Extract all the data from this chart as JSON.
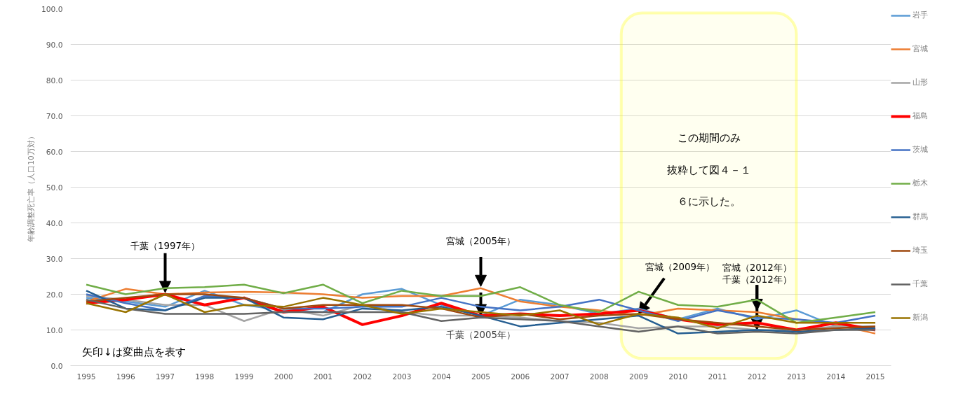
{
  "chart_data": {
    "type": "line",
    "ylabel": "年齢調整死亡率（人口10万対）",
    "x": [
      1995,
      1996,
      1997,
      1998,
      1999,
      2000,
      2001,
      2002,
      2003,
      2004,
      2005,
      2006,
      2007,
      2008,
      2009,
      2010,
      2011,
      2012,
      2013,
      2014,
      2015
    ],
    "xlim": [
      1994.6,
      2015.4
    ],
    "xticks": [
      1995,
      1996,
      1997,
      1998,
      1999,
      2000,
      2001,
      2002,
      2003,
      2004,
      2005,
      2006,
      2007,
      2008,
      2009,
      2010,
      2011,
      2012,
      2013,
      2014,
      2015
    ],
    "ylim": [
      0,
      100
    ],
    "yticks": [
      {
        "value": 0,
        "label": "0.0"
      },
      {
        "value": 10,
        "label": "10.0"
      },
      {
        "value": 20,
        "label": "20.0"
      },
      {
        "value": 30,
        "label": "30.0"
      },
      {
        "value": 40,
        "label": "40.0"
      },
      {
        "value": 50,
        "label": "50.0"
      },
      {
        "value": 60,
        "label": "60.0"
      },
      {
        "value": 70,
        "label": "70.0"
      },
      {
        "value": 80,
        "label": "80.0"
      },
      {
        "value": 90,
        "label": "90.0"
      },
      {
        "value": 100,
        "label": "100.0"
      }
    ],
    "grid": "y",
    "legend": "right",
    "marker": "none",
    "line_style": "solid",
    "series": [
      {
        "name": "岩手",
        "color": "#5b9bd5",
        "values": [
          19,
          18,
          16.5,
          21,
          17,
          15.5,
          15,
          20,
          21.5,
          17,
          14,
          18.5,
          17,
          14.5,
          16,
          13,
          16,
          13,
          15.5,
          11,
          11
        ]
      },
      {
        "name": "宮城",
        "color": "#ed7d31",
        "values": [
          18,
          21.5,
          20,
          20.5,
          20.7,
          20.5,
          20,
          19,
          19.5,
          19.5,
          21.7,
          18,
          16.5,
          15.5,
          14,
          16,
          15.5,
          15,
          13,
          11.5,
          9
        ]
      },
      {
        "name": "山形",
        "color": "#a5a5a5",
        "values": [
          19.5,
          18.5,
          17,
          17,
          12.5,
          16,
          14,
          17,
          15,
          14,
          14,
          13.5,
          12.5,
          12,
          10.5,
          11,
          11,
          10,
          10,
          11,
          11
        ]
      },
      {
        "name": "福島",
        "color": "#ff0000",
        "values": [
          17.5,
          18.5,
          20,
          17,
          19,
          15,
          16.5,
          11.5,
          14,
          17.5,
          14,
          14.5,
          14,
          14.5,
          15.5,
          13,
          11.5,
          12,
          10,
          12,
          10
        ]
      },
      {
        "name": "茨城",
        "color": "#4472c4",
        "values": [
          20,
          17.5,
          15.5,
          19.5,
          19,
          16,
          16,
          16.5,
          16.5,
          19,
          16.5,
          15.5,
          16.5,
          18.5,
          15.5,
          12.5,
          15.5,
          13.5,
          13,
          12,
          14
        ]
      },
      {
        "name": "栃木",
        "color": "#70ad47",
        "values": [
          22.7,
          20,
          21.7,
          22,
          22.7,
          20.3,
          22.7,
          17.5,
          21,
          19.5,
          19.5,
          22,
          17,
          15,
          20.7,
          17,
          16.5,
          18.5,
          12,
          13.5,
          15
        ]
      },
      {
        "name": "群馬",
        "color": "#255e91",
        "values": [
          21,
          16,
          15.5,
          19,
          19,
          13.5,
          13,
          16,
          15.5,
          16.5,
          14,
          11,
          12,
          13,
          14,
          9,
          9.5,
          10,
          9.5,
          10,
          10.5
        ]
      },
      {
        "name": "埼玉",
        "color": "#9e480e",
        "values": [
          18,
          19,
          20,
          20,
          19,
          16,
          17,
          17,
          17,
          16,
          13.5,
          14.5,
          13,
          14,
          14.5,
          13,
          12,
          11,
          10,
          10.5,
          11
        ]
      },
      {
        "name": "千葉",
        "color": "#636363",
        "values": [
          18.5,
          16,
          14.5,
          14.5,
          14.5,
          15,
          15,
          15,
          15,
          12.5,
          13.5,
          13,
          12.5,
          11,
          9.5,
          11,
          9,
          9.5,
          9,
          10,
          10
        ]
      },
      {
        "name": "新潟",
        "color": "#997300",
        "values": [
          17.5,
          15,
          20,
          15,
          17,
          16.5,
          19,
          17,
          14.5,
          16,
          15,
          14,
          15.5,
          11.5,
          14.5,
          13.5,
          10.5,
          14,
          12,
          12,
          12
        ]
      }
    ],
    "bands": [
      {
        "axis": "x",
        "from": 2008.56,
        "to": 2013.0,
        "color": "#ffff00",
        "label": "この期間のみ抜粋して図４－１６に示した。"
      }
    ],
    "annotations": [
      {
        "text": "千葉（1997年）",
        "x": 1997,
        "y": 20
      },
      {
        "text": "宮城（2005年）",
        "x": 2005,
        "y": 21.7
      },
      {
        "text": "千葉（2005年）",
        "x": 2005,
        "y": 13.5
      },
      {
        "text": "宮城（2009年）",
        "x": 2009,
        "y": 14
      },
      {
        "text": "宮城（2012年）",
        "x": 2012,
        "y": 15
      },
      {
        "text": "千葉（2012年）",
        "x": 2012,
        "y": 9.5
      },
      "矢印↓は変曲点を表す"
    ]
  }
}
